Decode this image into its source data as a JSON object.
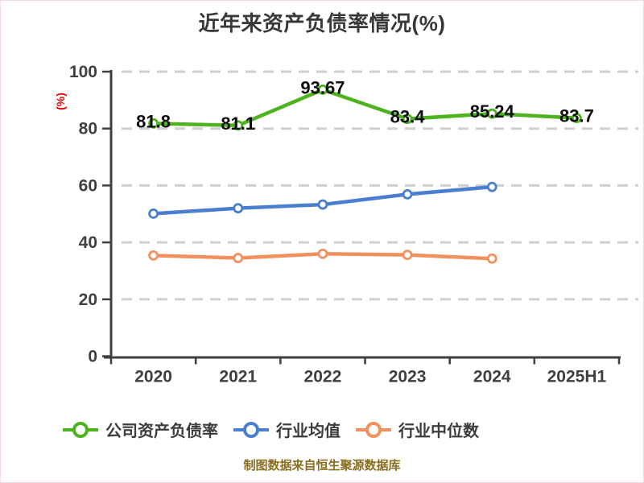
{
  "chart_data": {
    "type": "line",
    "title": "近年来资产负债率情况(%)",
    "ylabel": "(%)",
    "categories": [
      "2020",
      "2021",
      "2022",
      "2023",
      "2024",
      "2025H1"
    ],
    "ylim": [
      0,
      100
    ],
    "yticks": [
      0,
      20,
      40,
      60,
      80,
      100
    ],
    "grid": "horizontal-dashed",
    "legend_position": "bottom",
    "series": [
      {
        "name": "公司资产负债率",
        "color": "#4db31e",
        "marker": "circle-white-fill",
        "values": [
          81.8,
          81.1,
          93.67,
          83.4,
          85.24,
          83.7
        ],
        "data_labels": [
          "81.8",
          "81.1",
          "93.67",
          "83.4",
          "85.24",
          "83.7"
        ]
      },
      {
        "name": "行业均值",
        "color": "#4a7ed1",
        "marker": "circle-white-fill",
        "values": [
          50.1,
          52.0,
          53.3,
          56.9,
          59.5
        ]
      },
      {
        "name": "行业中位数",
        "color": "#f2915e",
        "marker": "circle-white-fill",
        "values": [
          35.4,
          34.5,
          36.0,
          35.6,
          34.3
        ]
      }
    ]
  },
  "footer": {
    "text": "制图数据来自恒生聚源数据库",
    "color": "#8a6d1e"
  },
  "colors": {
    "background": "#ffffff",
    "title": "#383838",
    "axis": "#3f3f3f",
    "grid": "#cfcfcf",
    "tick_label": "#3f3f3f",
    "data_label": "#0d0d0d",
    "ylabel": "#e60000",
    "legend_text": "#3c3c3c"
  }
}
